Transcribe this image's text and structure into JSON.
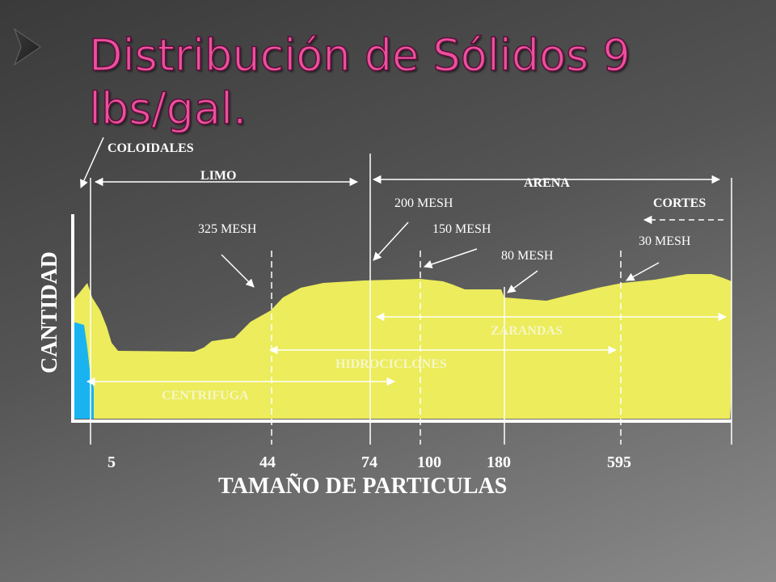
{
  "title": "Distribución de Sólidos 9 lbs/gal.",
  "y_axis_label": "CANTIDAD",
  "x_axis_label": "TAMAÑO DE PARTICULAS",
  "x_labels": [
    "5",
    "44",
    "74",
    "100",
    "180",
    "595"
  ],
  "size_classes": [
    "COLOIDALES",
    "LIMO",
    "ARENA",
    "CORTES"
  ],
  "mesh_labels": [
    "325 MESH",
    "200 MESH",
    "150 MESH",
    "80 MESH",
    "30 MESH"
  ],
  "equipment": [
    "ZARANDAS",
    "HIDROCICLONES",
    "CENTRIFUGA"
  ]
}
